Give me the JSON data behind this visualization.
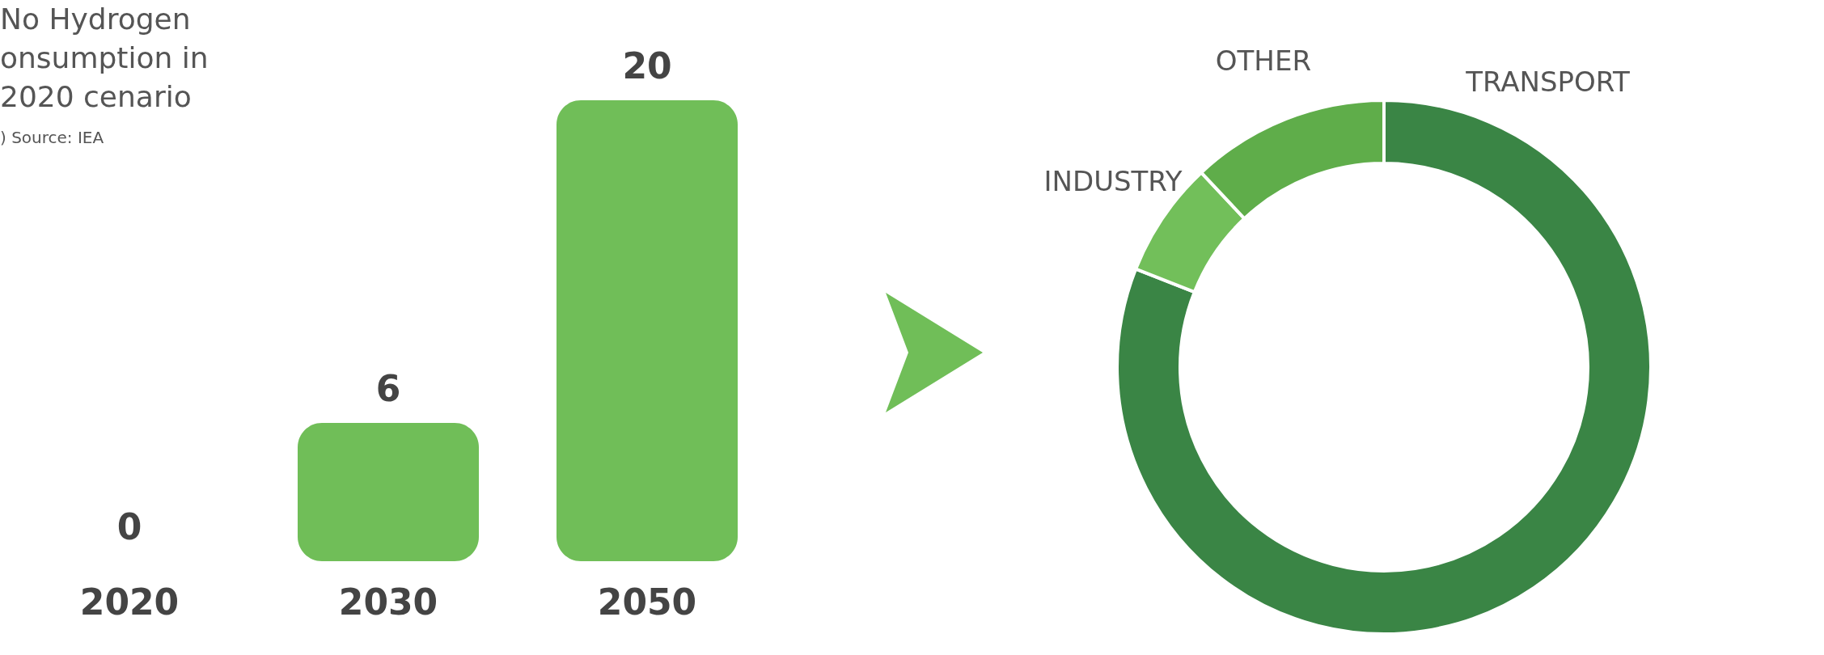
{
  "chart_data": [
    {
      "type": "bar",
      "title": "No Hydrogen onsumption in 2020 cenario",
      "annotations": [
        ") Source: IEA"
      ],
      "categories": [
        "2020",
        "2030",
        "2050"
      ],
      "values": [
        0,
        6,
        20
      ],
      "color": "#70be58",
      "data_labels": true
    },
    {
      "type": "donut",
      "categories": [
        "TRANSPORT",
        "INDUSTRY",
        "OTHER"
      ],
      "values": [
        81,
        7,
        12
      ],
      "colors": [
        "#3a8545",
        "#72bf5a",
        "#5fad4a"
      ],
      "legend": false
    }
  ]
}
